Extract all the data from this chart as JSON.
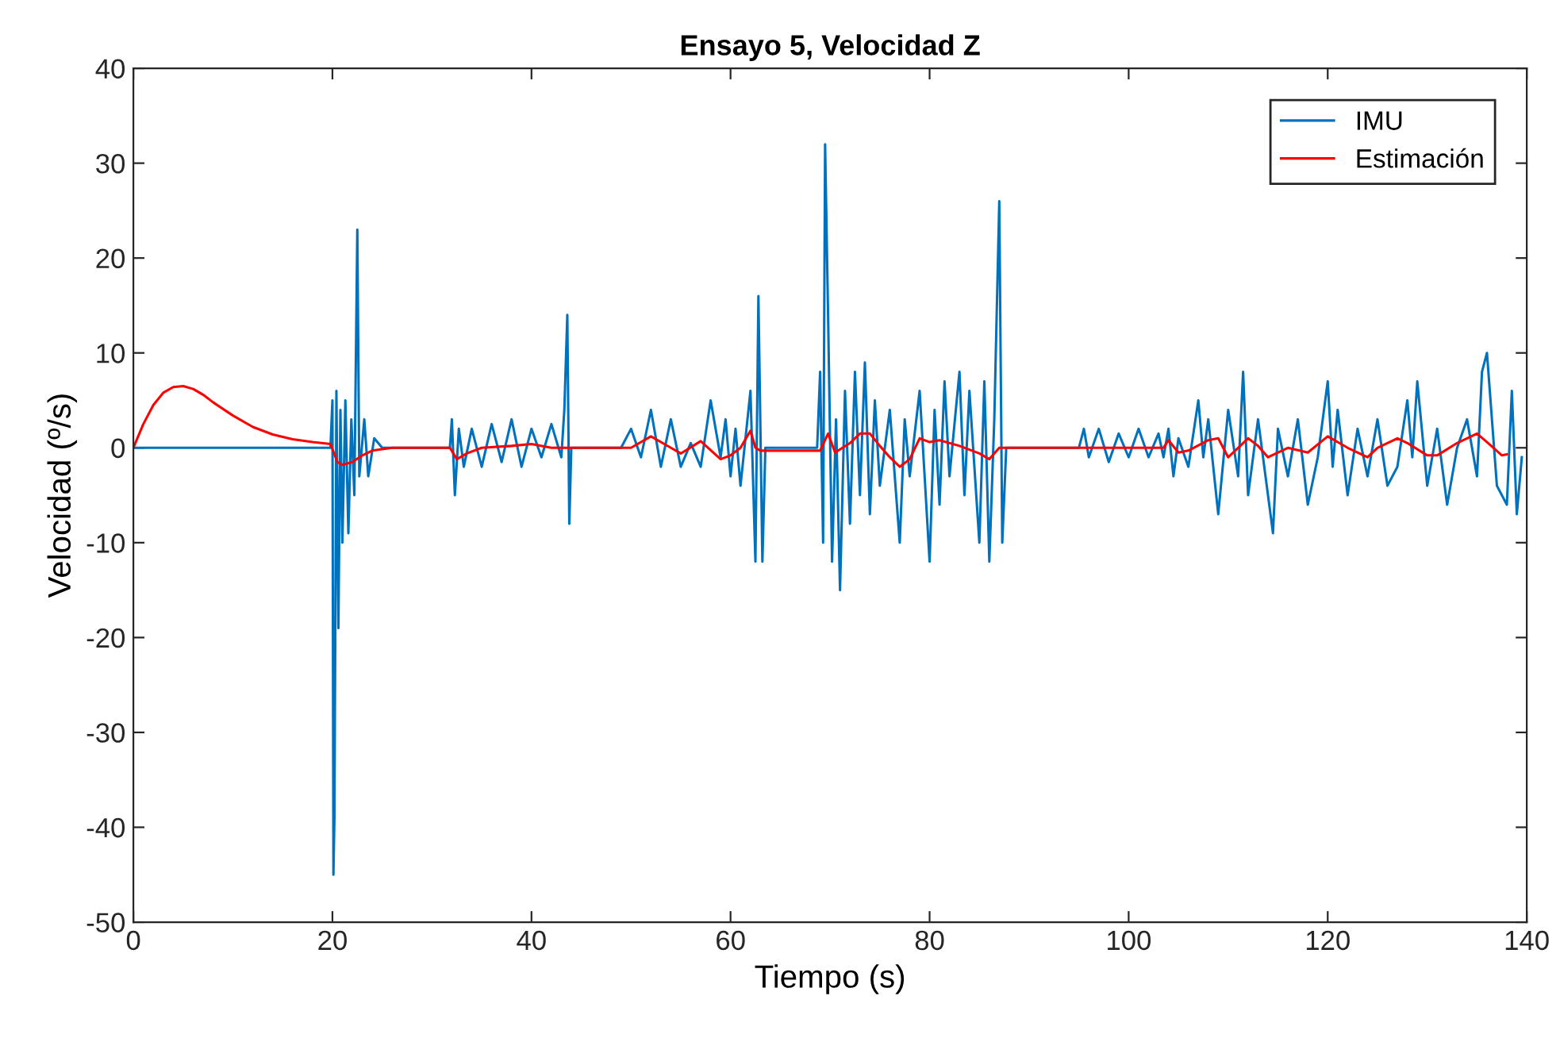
{
  "chart_data": {
    "type": "line",
    "title": "Ensayo 5, Velocidad Z",
    "xlabel": "Tiempo (s)",
    "ylabel": "Velocidad (º/s)",
    "xlim": [
      0,
      140
    ],
    "xticks": [
      0,
      20,
      40,
      60,
      80,
      100,
      120,
      140
    ],
    "ylim": [
      -50,
      40
    ],
    "yticks": [
      -50,
      -40,
      -30,
      -20,
      -10,
      0,
      10,
      20,
      30,
      40
    ],
    "grid": false,
    "legend": "top right",
    "marker": "none",
    "line_style": "solid",
    "series": [
      {
        "name": "IMU",
        "color": "#0072bd",
        "x": [
          0,
          19.8,
          20.0,
          20.1,
          20.2,
          20.4,
          20.6,
          20.8,
          21.0,
          21.3,
          21.6,
          21.9,
          22.2,
          22.5,
          22.7,
          23.2,
          23.6,
          24.2,
          25,
          31.8,
          32.0,
          32.3,
          32.7,
          33.2,
          34,
          35,
          36,
          37,
          38,
          39,
          40,
          41,
          42,
          43,
          43.3,
          43.6,
          43.8,
          44,
          49,
          50,
          51,
          52,
          53,
          54,
          55,
          56,
          57,
          58,
          59,
          59.5,
          60,
          60.5,
          61,
          62,
          62.5,
          62.8,
          63.2,
          63.5,
          68.7,
          69.0,
          69.3,
          69.5,
          69.8,
          70.2,
          70.6,
          71,
          71.5,
          72,
          72.5,
          73,
          73.5,
          74,
          74.5,
          75,
          76,
          77,
          77.5,
          78,
          79,
          80,
          80.5,
          81,
          81.5,
          82,
          83,
          83.5,
          84,
          85,
          85.5,
          86,
          86.5,
          87,
          87.3,
          87.7,
          95,
          95.5,
          96,
          97,
          98,
          99,
          100,
          101,
          102,
          103,
          103.5,
          104,
          104.5,
          105,
          106,
          107,
          107.5,
          108,
          109,
          110,
          111,
          111.5,
          112,
          113,
          114,
          114.5,
          115,
          116,
          117,
          118,
          119,
          120,
          120.5,
          121,
          122,
          123,
          124,
          125,
          126,
          127,
          128,
          128.5,
          129,
          130,
          131,
          132,
          133,
          134,
          135,
          135.5,
          136,
          137,
          138,
          138.5,
          139,
          139.5
        ],
        "values": [
          0,
          0,
          5,
          -45,
          -39,
          6,
          -19,
          4,
          -10,
          5,
          -9,
          3,
          -5,
          23,
          -3,
          3,
          -3,
          1,
          0,
          0,
          3,
          -5,
          2,
          -2,
          2,
          -2,
          2.5,
          -1.5,
          3,
          -2,
          2,
          -1,
          2.5,
          -1,
          4,
          14,
          -8,
          0,
          0,
          2,
          -1,
          4,
          -2,
          3,
          -2,
          0.5,
          -2,
          5,
          -1,
          3,
          -3,
          2,
          -4,
          6,
          -12,
          16,
          -12,
          0,
          0,
          8,
          -10,
          32,
          14,
          -12,
          3,
          -15,
          6,
          -8,
          8,
          -5,
          9,
          -7,
          5,
          -4,
          4,
          -10,
          3,
          -3,
          6,
          -12,
          4,
          -6,
          7,
          -3,
          8,
          -5,
          6,
          -10,
          7,
          -12,
          3,
          26,
          -10,
          0,
          0,
          2,
          -1,
          2,
          -1.5,
          1.5,
          -1,
          2,
          -1,
          1.5,
          -1,
          2,
          -3,
          1,
          -2,
          5,
          -1,
          3,
          -7,
          4,
          -3,
          8,
          -5,
          3,
          -5,
          -9,
          2,
          -3,
          3,
          -6,
          -1,
          7,
          -2,
          4,
          -5,
          2,
          -3,
          3,
          -4,
          -2,
          5,
          -1,
          7,
          -4,
          2,
          -6,
          0,
          3,
          -3,
          8,
          10,
          -4,
          -6,
          6,
          -7,
          -1
        ]
      },
      {
        "name": "Estimación",
        "color": "#ff0000",
        "x": [
          0,
          1,
          2,
          3,
          4,
          5,
          6,
          7,
          8,
          10,
          12,
          14,
          16,
          18,
          19.8,
          20.5,
          21,
          22,
          23,
          24,
          26,
          31.8,
          32.5,
          33.5,
          35,
          38,
          40,
          42,
          44,
          50,
          52,
          54,
          55,
          57,
          59,
          60,
          61,
          62,
          62.5,
          63,
          69,
          69.8,
          70.5,
          72,
          73,
          74,
          75,
          76,
          77,
          78,
          79,
          80,
          81,
          83,
          85,
          86,
          87,
          88,
          103.5,
          104,
          105,
          106,
          108,
          109,
          110,
          111,
          112,
          113,
          114,
          116,
          118,
          120,
          122,
          124,
          125,
          127,
          128,
          130,
          131,
          133,
          135,
          136,
          137.5,
          138
        ],
        "values": [
          0,
          2.5,
          4.5,
          5.8,
          6.4,
          6.5,
          6.2,
          5.6,
          4.8,
          3.4,
          2.2,
          1.4,
          0.9,
          0.6,
          0.4,
          -1.5,
          -1.8,
          -1.5,
          -0.8,
          -0.3,
          0,
          0,
          -1.2,
          -0.6,
          0,
          0.2,
          0.4,
          0,
          0,
          0,
          1.2,
          0,
          -0.6,
          0.7,
          -1.2,
          -0.8,
          0,
          1.8,
          0,
          -0.3,
          -0.3,
          1.5,
          -0.5,
          0.5,
          1.5,
          1.5,
          0.2,
          -1,
          -2,
          -1.2,
          1,
          0.6,
          0.8,
          0.2,
          -0.6,
          -1.2,
          0,
          0,
          0,
          0.8,
          -0.5,
          -0.3,
          0.8,
          1,
          -1,
          0,
          1,
          0.2,
          -1,
          0,
          -0.5,
          1.2,
          0,
          -1,
          0,
          1,
          0.5,
          -0.8,
          -0.8,
          0.5,
          1.5,
          0.6,
          -0.8,
          -0.7
        ]
      }
    ]
  }
}
